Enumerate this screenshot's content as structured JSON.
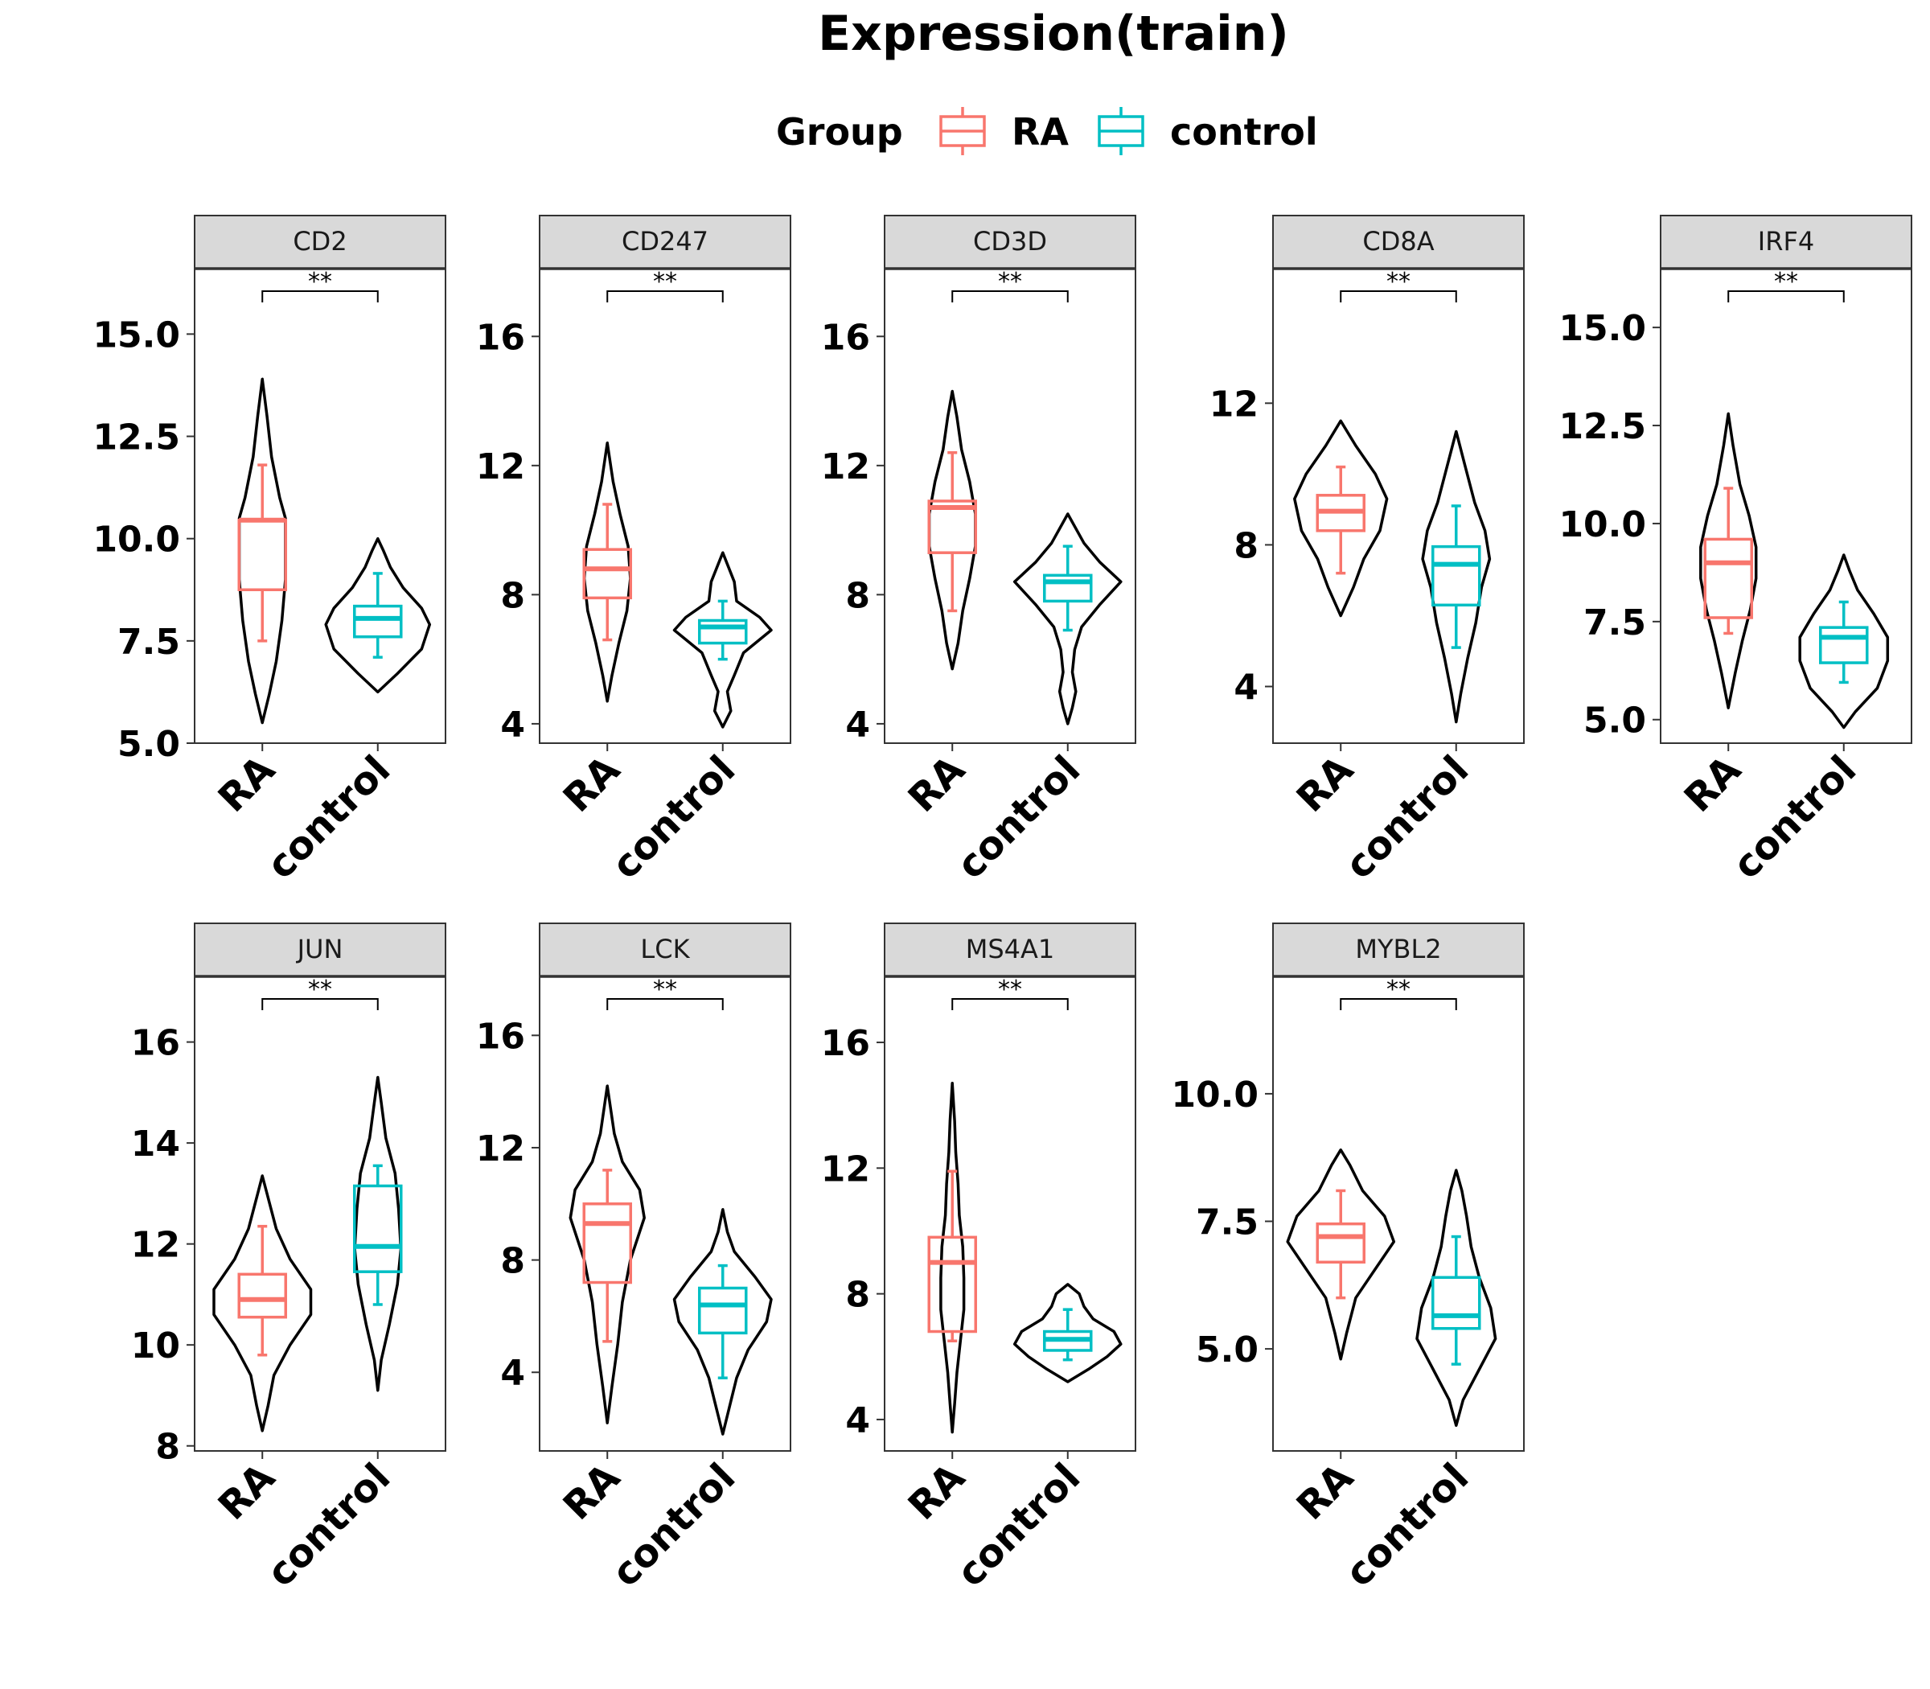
{
  "title": "Expression(train)",
  "legend": {
    "title": "Group",
    "placement": "top",
    "items": [
      {
        "name": "RA",
        "color": "#F8766D"
      },
      {
        "name": "control",
        "color": "#00BFC4"
      }
    ]
  },
  "colors": {
    "RA": "#F8766D",
    "control": "#00BFC4",
    "violin": "#000000",
    "strip_fill": "#D9D9D9",
    "strip_border": "#333333",
    "panel_border": "#333333"
  },
  "chart_data": [
    {
      "type": "violin",
      "panel": "CD2",
      "categories": [
        "RA",
        "control"
      ],
      "ylim": [
        5.0,
        16.6
      ],
      "yticks": [
        "5.0",
        "7.5",
        "10.0",
        "12.5",
        "15.0"
      ],
      "significance": "**",
      "series": [
        {
          "name": "RA",
          "box": {
            "whisker_low": 7.5,
            "q1": 8.75,
            "median": 10.45,
            "q3": 10.45,
            "whisker_high": 11.8
          },
          "violin": [
            [
              5.5,
              0.0
            ],
            [
              6.2,
              0.06
            ],
            [
              7.0,
              0.12
            ],
            [
              8.0,
              0.17
            ],
            [
              9.0,
              0.2
            ],
            [
              10.0,
              0.2
            ],
            [
              10.5,
              0.2
            ],
            [
              11.0,
              0.15
            ],
            [
              12.0,
              0.08
            ],
            [
              13.0,
              0.04
            ],
            [
              13.9,
              0.0
            ]
          ]
        },
        {
          "name": "control",
          "box": {
            "whisker_low": 7.1,
            "q1": 7.6,
            "median": 8.05,
            "q3": 8.35,
            "whisker_high": 9.15
          },
          "violin": [
            [
              6.25,
              0.0
            ],
            [
              6.7,
              0.17
            ],
            [
              7.3,
              0.38
            ],
            [
              7.9,
              0.45
            ],
            [
              8.3,
              0.38
            ],
            [
              8.8,
              0.22
            ],
            [
              9.3,
              0.11
            ],
            [
              9.7,
              0.05
            ],
            [
              10.0,
              0.0
            ]
          ]
        }
      ]
    },
    {
      "type": "violin",
      "panel": "CD247",
      "categories": [
        "RA",
        "control"
      ],
      "ylim": [
        3.4,
        18.1
      ],
      "yticks": [
        "4",
        "8",
        "12",
        "16"
      ],
      "significance": "**",
      "series": [
        {
          "name": "RA",
          "box": {
            "whisker_low": 6.6,
            "q1": 7.9,
            "median": 8.8,
            "q3": 9.4,
            "whisker_high": 10.8
          },
          "violin": [
            [
              4.7,
              0.0
            ],
            [
              5.5,
              0.04
            ],
            [
              6.5,
              0.1
            ],
            [
              7.5,
              0.17
            ],
            [
              8.5,
              0.2
            ],
            [
              9.5,
              0.18
            ],
            [
              10.5,
              0.11
            ],
            [
              11.5,
              0.05
            ],
            [
              12.7,
              0.0
            ]
          ]
        },
        {
          "name": "control",
          "box": {
            "whisker_low": 6.0,
            "q1": 6.5,
            "median": 7.0,
            "q3": 7.2,
            "whisker_high": 7.8
          },
          "violin": [
            [
              3.9,
              0.0
            ],
            [
              4.4,
              0.07
            ],
            [
              5.0,
              0.04
            ],
            [
              5.5,
              0.1
            ],
            [
              6.2,
              0.18
            ],
            [
              6.9,
              0.42
            ],
            [
              7.3,
              0.32
            ],
            [
              7.8,
              0.12
            ],
            [
              8.4,
              0.1
            ],
            [
              9.3,
              0.0
            ]
          ]
        }
      ]
    },
    {
      "type": "violin",
      "panel": "CD3D",
      "categories": [
        "RA",
        "control"
      ],
      "ylim": [
        3.4,
        18.1
      ],
      "yticks": [
        "4",
        "8",
        "12",
        "16"
      ],
      "significance": "**",
      "series": [
        {
          "name": "RA",
          "box": {
            "whisker_low": 7.5,
            "q1": 9.3,
            "median": 10.7,
            "q3": 10.9,
            "whisker_high": 12.4
          },
          "violin": [
            [
              5.7,
              0.0
            ],
            [
              6.5,
              0.05
            ],
            [
              7.5,
              0.09
            ],
            [
              8.5,
              0.15
            ],
            [
              9.5,
              0.2
            ],
            [
              10.5,
              0.2
            ],
            [
              11.5,
              0.15
            ],
            [
              12.5,
              0.08
            ],
            [
              13.5,
              0.04
            ],
            [
              14.3,
              0.0
            ]
          ]
        },
        {
          "name": "control",
          "box": {
            "whisker_low": 6.9,
            "q1": 7.8,
            "median": 8.4,
            "q3": 8.6,
            "whisker_high": 9.5
          },
          "violin": [
            [
              4.0,
              0.0
            ],
            [
              4.5,
              0.04
            ],
            [
              5.0,
              0.07
            ],
            [
              5.6,
              0.04
            ],
            [
              6.3,
              0.06
            ],
            [
              7.0,
              0.12
            ],
            [
              7.7,
              0.28
            ],
            [
              8.4,
              0.46
            ],
            [
              9.0,
              0.28
            ],
            [
              9.6,
              0.14
            ],
            [
              10.5,
              0.0
            ]
          ]
        }
      ]
    },
    {
      "type": "violin",
      "panel": "CD8A",
      "categories": [
        "RA",
        "control"
      ],
      "ylim": [
        2.4,
        15.8
      ],
      "yticks": [
        "4",
        "8",
        "12"
      ],
      "significance": "**",
      "series": [
        {
          "name": "RA",
          "box": {
            "whisker_low": 7.2,
            "q1": 8.4,
            "median": 8.95,
            "q3": 9.4,
            "whisker_high": 10.2
          },
          "violin": [
            [
              6.0,
              0.0
            ],
            [
              6.8,
              0.11
            ],
            [
              7.6,
              0.2
            ],
            [
              8.4,
              0.34
            ],
            [
              9.3,
              0.4
            ],
            [
              10.0,
              0.3
            ],
            [
              10.8,
              0.13
            ],
            [
              11.5,
              0.0
            ]
          ]
        },
        {
          "name": "control",
          "box": {
            "whisker_low": 5.1,
            "q1": 6.3,
            "median": 7.45,
            "q3": 7.95,
            "whisker_high": 9.1
          },
          "violin": [
            [
              3.0,
              0.0
            ],
            [
              3.8,
              0.04
            ],
            [
              4.8,
              0.1
            ],
            [
              5.8,
              0.17
            ],
            [
              6.8,
              0.22
            ],
            [
              7.6,
              0.29
            ],
            [
              8.4,
              0.25
            ],
            [
              9.2,
              0.16
            ],
            [
              10.2,
              0.08
            ],
            [
              11.2,
              0.0
            ]
          ]
        }
      ]
    },
    {
      "type": "violin",
      "panel": "IRF4",
      "categories": [
        "RA",
        "control"
      ],
      "ylim": [
        4.4,
        16.5
      ],
      "yticks": [
        "5.0",
        "7.5",
        "10.0",
        "12.5",
        "15.0"
      ],
      "significance": "**",
      "series": [
        {
          "name": "RA",
          "box": {
            "whisker_low": 7.2,
            "q1": 7.6,
            "median": 9.0,
            "q3": 9.6,
            "whisker_high": 10.9
          },
          "violin": [
            [
              5.3,
              0.0
            ],
            [
              6.2,
              0.06
            ],
            [
              7.0,
              0.12
            ],
            [
              7.8,
              0.19
            ],
            [
              8.6,
              0.24
            ],
            [
              9.4,
              0.24
            ],
            [
              10.2,
              0.18
            ],
            [
              11.0,
              0.1
            ],
            [
              12.0,
              0.04
            ],
            [
              12.8,
              0.0
            ]
          ]
        },
        {
          "name": "control",
          "box": {
            "whisker_low": 5.95,
            "q1": 6.45,
            "median": 7.1,
            "q3": 7.35,
            "whisker_high": 8.0
          },
          "violin": [
            [
              4.8,
              0.0
            ],
            [
              5.2,
              0.1
            ],
            [
              5.8,
              0.29
            ],
            [
              6.5,
              0.38
            ],
            [
              7.1,
              0.38
            ],
            [
              7.7,
              0.26
            ],
            [
              8.3,
              0.12
            ],
            [
              8.8,
              0.05
            ],
            [
              9.2,
              0.0
            ]
          ]
        }
      ]
    },
    {
      "type": "violin",
      "panel": "JUN",
      "categories": [
        "RA",
        "control"
      ],
      "ylim": [
        7.9,
        17.3
      ],
      "yticks": [
        "8",
        "10",
        "12",
        "14",
        "16"
      ],
      "significance": "**",
      "series": [
        {
          "name": "RA",
          "box": {
            "whisker_low": 9.8,
            "q1": 10.55,
            "median": 10.9,
            "q3": 11.4,
            "whisker_high": 12.35
          },
          "violin": [
            [
              8.3,
              0.0
            ],
            [
              8.8,
              0.05
            ],
            [
              9.4,
              0.1
            ],
            [
              10.0,
              0.24
            ],
            [
              10.6,
              0.42
            ],
            [
              11.1,
              0.42
            ],
            [
              11.7,
              0.24
            ],
            [
              12.3,
              0.12
            ],
            [
              13.0,
              0.04
            ],
            [
              13.35,
              0.0
            ]
          ]
        },
        {
          "name": "control",
          "box": {
            "whisker_low": 10.8,
            "q1": 11.45,
            "median": 11.95,
            "q3": 13.15,
            "whisker_high": 13.55
          },
          "violin": [
            [
              9.1,
              0.0
            ],
            [
              9.7,
              0.03
            ],
            [
              10.4,
              0.1
            ],
            [
              11.2,
              0.17
            ],
            [
              11.9,
              0.2
            ],
            [
              12.7,
              0.18
            ],
            [
              13.4,
              0.15
            ],
            [
              14.1,
              0.07
            ],
            [
              14.8,
              0.03
            ],
            [
              15.3,
              0.0
            ]
          ]
        }
      ]
    },
    {
      "type": "violin",
      "panel": "LCK",
      "categories": [
        "RA",
        "control"
      ],
      "ylim": [
        1.2,
        18.1
      ],
      "yticks": [
        "4",
        "8",
        "12",
        "16"
      ],
      "significance": "**",
      "series": [
        {
          "name": "RA",
          "box": {
            "whisker_low": 5.1,
            "q1": 7.2,
            "median": 9.3,
            "q3": 10.0,
            "whisker_high": 11.2
          },
          "violin": [
            [
              2.2,
              0.0
            ],
            [
              3.5,
              0.04
            ],
            [
              5.0,
              0.09
            ],
            [
              6.5,
              0.13
            ],
            [
              8.0,
              0.2
            ],
            [
              9.5,
              0.32
            ],
            [
              10.5,
              0.28
            ],
            [
              11.5,
              0.13
            ],
            [
              12.5,
              0.06
            ],
            [
              14.2,
              0.0
            ]
          ]
        },
        {
          "name": "control",
          "box": {
            "whisker_low": 3.8,
            "q1": 5.4,
            "median": 6.4,
            "q3": 7.0,
            "whisker_high": 7.8
          },
          "violin": [
            [
              1.8,
              0.0
            ],
            [
              2.8,
              0.06
            ],
            [
              3.8,
              0.12
            ],
            [
              4.8,
              0.22
            ],
            [
              5.8,
              0.38
            ],
            [
              6.6,
              0.42
            ],
            [
              7.4,
              0.28
            ],
            [
              8.3,
              0.1
            ],
            [
              9.0,
              0.04
            ],
            [
              9.8,
              0.0
            ]
          ]
        }
      ]
    },
    {
      "type": "violin",
      "panel": "MS4A1",
      "categories": [
        "RA",
        "control"
      ],
      "ylim": [
        3.0,
        18.1
      ],
      "yticks": [
        "4",
        "8",
        "12",
        "16"
      ],
      "significance": "**",
      "series": [
        {
          "name": "RA",
          "box": {
            "whisker_low": 6.5,
            "q1": 6.8,
            "median": 9.0,
            "q3": 9.8,
            "whisker_high": 11.9
          },
          "violin": [
            [
              3.6,
              0.0
            ],
            [
              4.5,
              0.02
            ],
            [
              5.5,
              0.04
            ],
            [
              6.5,
              0.07
            ],
            [
              7.5,
              0.1
            ],
            [
              8.5,
              0.1
            ],
            [
              9.5,
              0.09
            ],
            [
              10.5,
              0.06
            ],
            [
              11.5,
              0.05
            ],
            [
              12.5,
              0.03
            ],
            [
              13.5,
              0.02
            ],
            [
              14.7,
              0.0
            ]
          ]
        },
        {
          "name": "control",
          "box": {
            "whisker_low": 5.9,
            "q1": 6.2,
            "median": 6.55,
            "q3": 6.8,
            "whisker_high": 7.5
          },
          "violin": [
            [
              5.2,
              0.0
            ],
            [
              5.6,
              0.18
            ],
            [
              6.0,
              0.34
            ],
            [
              6.4,
              0.46
            ],
            [
              6.8,
              0.4
            ],
            [
              7.2,
              0.22
            ],
            [
              7.6,
              0.14
            ],
            [
              8.0,
              0.1
            ],
            [
              8.3,
              0.0
            ]
          ]
        }
      ]
    },
    {
      "type": "violin",
      "panel": "MYBL2",
      "categories": [
        "RA",
        "control"
      ],
      "ylim": [
        3.0,
        12.3
      ],
      "yticks": [
        "5.0",
        "7.5",
        "10.0"
      ],
      "significance": "**",
      "series": [
        {
          "name": "RA",
          "box": {
            "whisker_low": 6.0,
            "q1": 6.7,
            "median": 7.2,
            "q3": 7.45,
            "whisker_high": 8.1
          },
          "violin": [
            [
              4.8,
              0.0
            ],
            [
              5.3,
              0.05
            ],
            [
              6.0,
              0.13
            ],
            [
              6.6,
              0.31
            ],
            [
              7.1,
              0.46
            ],
            [
              7.6,
              0.38
            ],
            [
              8.1,
              0.19
            ],
            [
              8.6,
              0.08
            ],
            [
              8.9,
              0.0
            ]
          ]
        },
        {
          "name": "control",
          "box": {
            "whisker_low": 4.7,
            "q1": 5.4,
            "median": 5.65,
            "q3": 6.4,
            "whisker_high": 7.2
          },
          "violin": [
            [
              3.5,
              0.0
            ],
            [
              4.0,
              0.06
            ],
            [
              4.6,
              0.2
            ],
            [
              5.2,
              0.34
            ],
            [
              5.8,
              0.3
            ],
            [
              6.4,
              0.2
            ],
            [
              7.0,
              0.13
            ],
            [
              7.6,
              0.09
            ],
            [
              8.1,
              0.05
            ],
            [
              8.5,
              0.0
            ]
          ]
        }
      ]
    }
  ]
}
